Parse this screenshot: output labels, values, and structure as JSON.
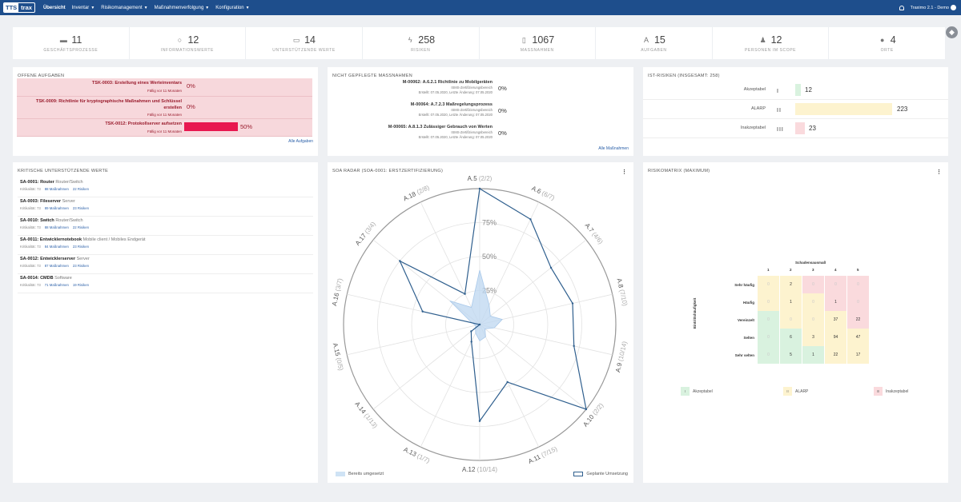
{
  "nav": {
    "logo_a": "TTS",
    "logo_b": "trax",
    "items": [
      {
        "label": "Übersicht",
        "dropdown": false
      },
      {
        "label": "Inventar",
        "dropdown": true
      },
      {
        "label": "Risikomanagement",
        "dropdown": true
      },
      {
        "label": "Maßnahmenverfolgung",
        "dropdown": true
      },
      {
        "label": "Konfiguration",
        "dropdown": true
      }
    ],
    "user": "Traximo 2.1 - Demo"
  },
  "stats": [
    {
      "value": "11",
      "label": "GESCHÄFTSPROZESSE",
      "icon": "briefcase-icon",
      "glyph": "▬"
    },
    {
      "value": "12",
      "label": "INFORMATIONSWERTE",
      "icon": "lightbulb-icon",
      "glyph": "○"
    },
    {
      "value": "14",
      "label": "UNTERSTÜTZENDE WERTE",
      "icon": "laptop-icon",
      "glyph": "▭"
    },
    {
      "value": "258",
      "label": "RISIKEN",
      "icon": "bolt-icon",
      "glyph": "ϟ"
    },
    {
      "value": "1067",
      "label": "MASSNAHMEN",
      "icon": "document-icon",
      "glyph": "▯"
    },
    {
      "value": "15",
      "label": "AUFGABEN",
      "icon": "pen-icon",
      "glyph": "A"
    },
    {
      "value": "12",
      "label": "PERSONEN IM SCOPE",
      "icon": "users-icon",
      "glyph": "♟"
    },
    {
      "value": "4",
      "label": "ORTE",
      "icon": "map-marker-icon",
      "glyph": "●"
    }
  ],
  "tasks": {
    "title": "OFFENE AUFGABEN",
    "more": "Alle Aufgaben",
    "items": [
      {
        "title": "TSK-0003: Erstellung eines Werteinventars",
        "due": "Fällig vor 11 Monaten",
        "percent": "0%",
        "progress": 0
      },
      {
        "title": "TSK-0009: Richtlinie für kryptographische Maßnahmen und Schlüssel erstellen",
        "due": "Fällig vor 11 Monaten",
        "percent": "0%",
        "progress": 0
      },
      {
        "title": "TSK-0012: Protokollserver aufsetzen",
        "due": "Fällig vor 11 Monaten",
        "percent": "50%",
        "progress": 0.5
      }
    ]
  },
  "measures": {
    "title": "NICHT GEPFLEGTE MASSNAHMEN",
    "more": "Alle Maßnahmen",
    "items": [
      {
        "title": "M-00062: A.6.2.1 Richtlinie zu Mobilgeräten",
        "scope": "ISMS-Zertifizierungsbereich",
        "dates": "Erstellt: 07.05.2020, Letzte Änderung: 07.05.2020",
        "percent": "0%"
      },
      {
        "title": "M-00064: A.7.2.3 Maßregelungsprozess",
        "scope": "ISMS-Zertifizierungsbereich",
        "dates": "Erstellt: 07.05.2020, Letzte Änderung: 07.05.2020",
        "percent": "0%"
      },
      {
        "title": "M-00065: A.8.1.3 Zulässiger Gebrauch von Werten",
        "scope": "ISMS-Zertifizierungsbereich",
        "dates": "Erstellt: 07.05.2020, Letzte Änderung: 07.05.2020",
        "percent": "0%"
      }
    ]
  },
  "ist_risks": {
    "title": "IST-RISIKEN (INSGESAMT: 258)",
    "items": [
      {
        "label": "Akzeptabel",
        "roman": "I",
        "value": 12,
        "color": "#d9f2df"
      },
      {
        "label": "ALARP",
        "roman": "II",
        "value": 223,
        "color": "#fdf3cf"
      },
      {
        "label": "Inakzeptabel",
        "roman": "III",
        "value": 23,
        "color": "#fadadd"
      }
    ]
  },
  "assets": {
    "title": "KRITISCHE UNTERSTÜTZENDE WERTE",
    "items": [
      {
        "name": "SA-0001: Router",
        "type": "Router/Switch",
        "crit": "Kritikalität: 73",
        "measures": "88 Maßnahmen",
        "risks": "22 Risiken"
      },
      {
        "name": "SA-0003: Fileserver",
        "type": "Server",
        "crit": "Kritikalität: 73",
        "measures": "89 Maßnahmen",
        "risks": "23 Risiken"
      },
      {
        "name": "SA-0010: Switch",
        "type": "Router/Switch",
        "crit": "Kritikalität: 73",
        "measures": "88 Maßnahmen",
        "risks": "22 Risiken"
      },
      {
        "name": "SA-0011: Entwicklernotebook",
        "type": "Mobile client / Mobiles Endgerät",
        "crit": "Kritikalität: 73",
        "measures": "84 Maßnahmen",
        "risks": "23 Risiken"
      },
      {
        "name": "SA-0012: Entwicklerserver",
        "type": "Server",
        "crit": "Kritikalität: 73",
        "measures": "87 Maßnahmen",
        "risks": "23 Risiken"
      },
      {
        "name": "SA-0014: CMDB",
        "type": "Software",
        "crit": "Kritikalität: 73",
        "measures": "71 Maßnahmen",
        "risks": "19 Risiken"
      }
    ]
  },
  "radar": {
    "title": "SOA RADAR (SOA-0001: ERSTZERTIFIZIERUNG)",
    "legend_done": "Bereits umgesetzt",
    "legend_planned": "Geplante Umsetzung",
    "ring_labels": [
      "25%",
      "50%",
      "75%"
    ]
  },
  "chart_data": {
    "type": "radar",
    "categories": [
      "A.5",
      "A.6",
      "A.7",
      "A.8",
      "A.9",
      "A.10",
      "A.11",
      "A.12",
      "A.13",
      "A.14",
      "A.15",
      "A.16",
      "A.17",
      "A.18"
    ],
    "category_labels": [
      "A.5 (2/2)",
      "A.6 (6/7)",
      "A.7 (4/6)",
      "A.8 (7/10)",
      "A.9 (10/14)",
      "A.10 (2/2)",
      "A.11 (7/15)",
      "A.12 (10/14)",
      "A.13 (1/7)",
      "A.14 (1/13)",
      "A.15 (0/5)",
      "A.16 (3/7)",
      "A.17 (3/4)",
      "A.18 (2/8)"
    ],
    "rlim": [
      0,
      100
    ],
    "ticks": [
      25,
      50,
      75
    ],
    "series": [
      {
        "name": "Bereits umgesetzt",
        "values": [
          40,
          16,
          10,
          17,
          11,
          5,
          10,
          12,
          7,
          4,
          3,
          6,
          28,
          14
        ]
      },
      {
        "name": "Geplante Umsetzung",
        "values": [
          100,
          86,
          67,
          70,
          71,
          100,
          47,
          71,
          14,
          8,
          0,
          43,
          75,
          25
        ]
      }
    ]
  },
  "matrix": {
    "title": "RISIKOMATRIX (MAXIMUM)",
    "x_title": "Schadensausmaß",
    "y_title": "Eintrittshäufigkeit",
    "cols": [
      "1",
      "2",
      "3",
      "4",
      "5"
    ],
    "rows": [
      {
        "label": "Sehr häufig",
        "values": [
          "0",
          "2",
          "0",
          "0",
          "0"
        ],
        "levels": [
          2,
          2,
          3,
          3,
          3
        ]
      },
      {
        "label": "Häufig",
        "values": [
          "0",
          "1",
          "0",
          "1",
          "0"
        ],
        "levels": [
          2,
          2,
          2,
          3,
          3
        ]
      },
      {
        "label": "Vereinzelt",
        "values": [
          "0",
          "0",
          "0",
          "37",
          "22"
        ],
        "levels": [
          1,
          2,
          2,
          2,
          3
        ]
      },
      {
        "label": "Selten",
        "values": [
          "0",
          "6",
          "3",
          "94",
          "47"
        ],
        "levels": [
          1,
          1,
          2,
          2,
          2
        ]
      },
      {
        "label": "Sehr selten",
        "values": [
          "0",
          "5",
          "1",
          "22",
          "17"
        ],
        "levels": [
          1,
          1,
          1,
          2,
          2
        ]
      }
    ],
    "legend": [
      {
        "roman": "I",
        "label": "Akzeptabel"
      },
      {
        "roman": "II",
        "label": "ALARP"
      },
      {
        "roman": "III",
        "label": "Inakzeptabel"
      }
    ],
    "level_colors": {
      "1": "#d9f2df",
      "2": "#fdf3cf",
      "3": "#fadadd"
    }
  }
}
